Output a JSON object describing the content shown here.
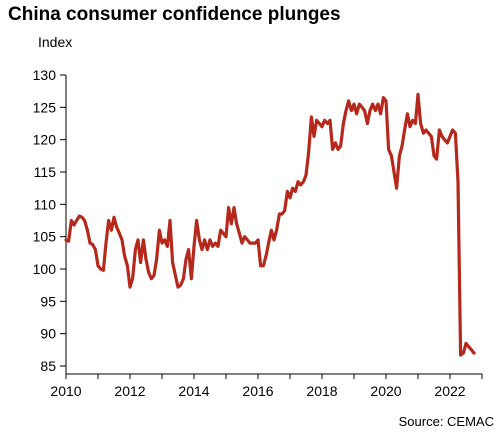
{
  "chart_data": {
    "type": "line",
    "title": "China consumer confidence plunges",
    "ylabel": "Index",
    "xlabel": "",
    "source": "Source: CEMAC",
    "ylim": [
      85,
      130
    ],
    "xlim": [
      2010,
      2023
    ],
    "yticks": [
      85,
      90,
      95,
      100,
      105,
      110,
      115,
      120,
      125,
      130
    ],
    "xticks": [
      2010,
      2012,
      2014,
      2016,
      2018,
      2020,
      2022
    ],
    "grid": false,
    "line_color": "#b5291c",
    "series": [
      {
        "name": "",
        "points": [
          [
            2010.0,
            104.5
          ],
          [
            2010.08,
            104.3
          ],
          [
            2010.17,
            107.5
          ],
          [
            2010.25,
            106.8
          ],
          [
            2010.33,
            107.5
          ],
          [
            2010.42,
            108.2
          ],
          [
            2010.5,
            108.0
          ],
          [
            2010.58,
            107.5
          ],
          [
            2010.67,
            106.0
          ],
          [
            2010.75,
            104.0
          ],
          [
            2010.83,
            103.8
          ],
          [
            2010.92,
            103.0
          ],
          [
            2011.0,
            100.5
          ],
          [
            2011.08,
            100.0
          ],
          [
            2011.17,
            99.8
          ],
          [
            2011.25,
            104.0
          ],
          [
            2011.33,
            107.5
          ],
          [
            2011.42,
            106.0
          ],
          [
            2011.5,
            108.0
          ],
          [
            2011.58,
            106.5
          ],
          [
            2011.67,
            105.5
          ],
          [
            2011.75,
            104.5
          ],
          [
            2011.83,
            102.0
          ],
          [
            2011.92,
            100.5
          ],
          [
            2012.0,
            97.2
          ],
          [
            2012.08,
            98.5
          ],
          [
            2012.17,
            103.0
          ],
          [
            2012.25,
            104.5
          ],
          [
            2012.33,
            101.0
          ],
          [
            2012.42,
            104.5
          ],
          [
            2012.5,
            101.5
          ],
          [
            2012.58,
            99.5
          ],
          [
            2012.67,
            98.5
          ],
          [
            2012.75,
            99.0
          ],
          [
            2012.83,
            101.5
          ],
          [
            2012.92,
            106.0
          ],
          [
            2013.0,
            104.0
          ],
          [
            2013.08,
            104.5
          ],
          [
            2013.17,
            103.5
          ],
          [
            2013.25,
            107.5
          ],
          [
            2013.33,
            101.0
          ],
          [
            2013.42,
            99.0
          ],
          [
            2013.5,
            97.2
          ],
          [
            2013.58,
            97.5
          ],
          [
            2013.67,
            98.5
          ],
          [
            2013.75,
            101.5
          ],
          [
            2013.83,
            103.0
          ],
          [
            2013.92,
            98.5
          ],
          [
            2014.0,
            103.5
          ],
          [
            2014.08,
            107.5
          ],
          [
            2014.17,
            104.5
          ],
          [
            2014.25,
            103.0
          ],
          [
            2014.33,
            104.5
          ],
          [
            2014.42,
            103.0
          ],
          [
            2014.5,
            104.5
          ],
          [
            2014.58,
            103.5
          ],
          [
            2014.67,
            104.0
          ],
          [
            2014.75,
            103.5
          ],
          [
            2014.83,
            106.0
          ],
          [
            2014.92,
            105.5
          ],
          [
            2015.0,
            105.0
          ],
          [
            2015.08,
            109.5
          ],
          [
            2015.17,
            107.0
          ],
          [
            2015.25,
            109.5
          ],
          [
            2015.33,
            107.0
          ],
          [
            2015.42,
            105.5
          ],
          [
            2015.5,
            104.0
          ],
          [
            2015.58,
            105.0
          ],
          [
            2015.67,
            104.5
          ],
          [
            2015.75,
            104.0
          ],
          [
            2015.83,
            104.0
          ],
          [
            2015.92,
            104.0
          ],
          [
            2016.0,
            104.5
          ],
          [
            2016.08,
            100.5
          ],
          [
            2016.17,
            100.5
          ],
          [
            2016.25,
            102.0
          ],
          [
            2016.33,
            104.0
          ],
          [
            2016.42,
            106.0
          ],
          [
            2016.5,
            104.5
          ],
          [
            2016.58,
            106.0
          ],
          [
            2016.67,
            108.5
          ],
          [
            2016.75,
            108.5
          ],
          [
            2016.83,
            109.0
          ],
          [
            2016.92,
            112.0
          ],
          [
            2017.0,
            111.0
          ],
          [
            2017.08,
            112.5
          ],
          [
            2017.17,
            112.0
          ],
          [
            2017.25,
            113.5
          ],
          [
            2017.33,
            113.0
          ],
          [
            2017.42,
            113.5
          ],
          [
            2017.5,
            114.5
          ],
          [
            2017.58,
            118.0
          ],
          [
            2017.67,
            123.5
          ],
          [
            2017.75,
            120.5
          ],
          [
            2017.83,
            123.0
          ],
          [
            2017.92,
            122.5
          ],
          [
            2018.0,
            122.0
          ],
          [
            2018.08,
            123.0
          ],
          [
            2018.17,
            122.5
          ],
          [
            2018.25,
            123.0
          ],
          [
            2018.33,
            118.5
          ],
          [
            2018.42,
            119.5
          ],
          [
            2018.5,
            118.5
          ],
          [
            2018.58,
            119.0
          ],
          [
            2018.67,
            122.5
          ],
          [
            2018.75,
            124.5
          ],
          [
            2018.83,
            126.0
          ],
          [
            2018.92,
            124.5
          ],
          [
            2019.0,
            125.5
          ],
          [
            2019.08,
            124.0
          ],
          [
            2019.17,
            125.5
          ],
          [
            2019.25,
            125.0
          ],
          [
            2019.33,
            124.5
          ],
          [
            2019.42,
            122.5
          ],
          [
            2019.5,
            124.5
          ],
          [
            2019.58,
            125.5
          ],
          [
            2019.67,
            124.5
          ],
          [
            2019.75,
            125.5
          ],
          [
            2019.83,
            124.0
          ],
          [
            2019.92,
            126.5
          ],
          [
            2020.0,
            126.0
          ],
          [
            2020.08,
            118.5
          ],
          [
            2020.17,
            117.5
          ],
          [
            2020.25,
            115.0
          ],
          [
            2020.33,
            112.5
          ],
          [
            2020.42,
            117.5
          ],
          [
            2020.5,
            119.0
          ],
          [
            2020.58,
            121.5
          ],
          [
            2020.67,
            124.0
          ],
          [
            2020.75,
            122.0
          ],
          [
            2020.83,
            123.0
          ],
          [
            2020.92,
            122.5
          ],
          [
            2021.0,
            127.0
          ],
          [
            2021.08,
            122.5
          ],
          [
            2021.17,
            121.0
          ],
          [
            2021.25,
            121.5
          ],
          [
            2021.33,
            121.0
          ],
          [
            2021.42,
            120.5
          ],
          [
            2021.5,
            117.5
          ],
          [
            2021.58,
            117.0
          ],
          [
            2021.67,
            121.5
          ],
          [
            2021.75,
            120.5
          ],
          [
            2021.83,
            120.0
          ],
          [
            2021.92,
            119.5
          ],
          [
            2022.0,
            120.5
          ],
          [
            2022.08,
            121.5
          ],
          [
            2022.17,
            121.0
          ],
          [
            2022.25,
            113.5
          ],
          [
            2022.33,
            86.7
          ],
          [
            2022.42,
            87.0
          ],
          [
            2022.5,
            88.5
          ],
          [
            2022.58,
            88.0
          ],
          [
            2022.67,
            87.5
          ],
          [
            2022.75,
            87.0
          ]
        ]
      }
    ]
  }
}
